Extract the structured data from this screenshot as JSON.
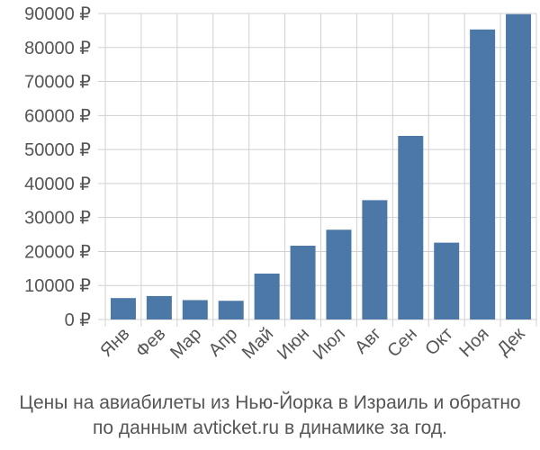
{
  "chart_data": {
    "type": "bar",
    "categories": [
      "Янв",
      "Фев",
      "Мар",
      "Апр",
      "Май",
      "Июн",
      "Июл",
      "Авг",
      "Сен",
      "Окт",
      "Ноя",
      "Дек"
    ],
    "values": [
      6300,
      6900,
      5700,
      5500,
      13500,
      21700,
      26400,
      35100,
      54000,
      22600,
      85300,
      89800
    ],
    "ylim": [
      0,
      90000
    ],
    "yticks": [
      0,
      10000,
      20000,
      30000,
      40000,
      50000,
      60000,
      70000,
      80000,
      90000
    ],
    "ytick_labels": [
      "0 ₽",
      "10000 ₽",
      "20000 ₽",
      "30000 ₽",
      "40000 ₽",
      "50000 ₽",
      "60000 ₽",
      "70000 ₽",
      "80000 ₽",
      "90000 ₽"
    ],
    "grid": true,
    "bar_color": "#4c78a8",
    "grid_color": "#d0d0d0",
    "axis_text_color": "#555555"
  },
  "caption": {
    "line1": "Цены на авиабилеты из Нью-Йорка в Израиль и обратно",
    "line2": "по данным avticket.ru в динамике за год."
  }
}
